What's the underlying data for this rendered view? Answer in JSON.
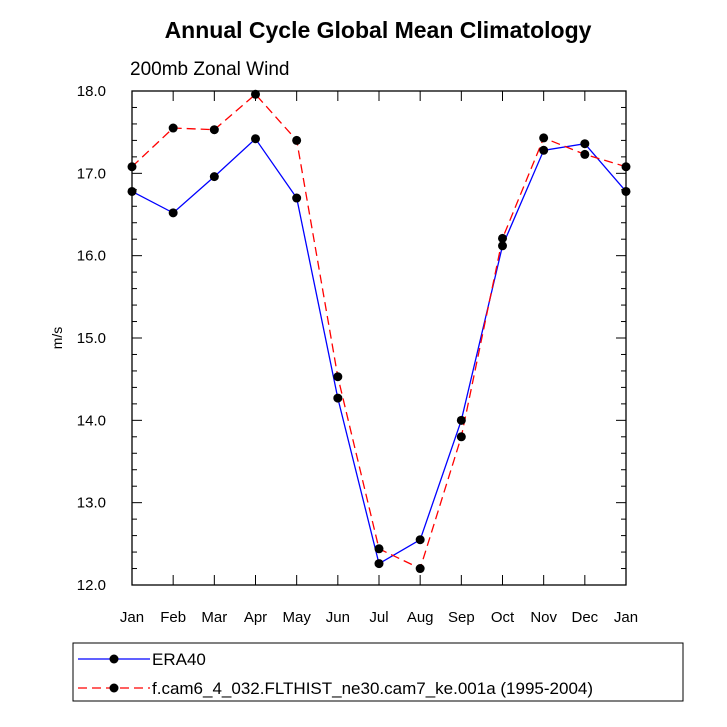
{
  "chart_data": {
    "type": "line",
    "title": "Annual Cycle Global Mean Climatology",
    "subtitle": "200mb Zonal Wind",
    "ylabel": "m/s",
    "xlabel": "",
    "categories": [
      "Jan",
      "Feb",
      "Mar",
      "Apr",
      "May",
      "Jun",
      "Jul",
      "Aug",
      "Sep",
      "Oct",
      "Nov",
      "Dec",
      "Jan"
    ],
    "ylim": [
      12.0,
      18.0
    ],
    "yticks": [
      "12.0",
      "13.0",
      "14.0",
      "15.0",
      "16.0",
      "17.0",
      "18.0"
    ],
    "series": [
      {
        "name": "ERA40",
        "color": "#0000ff",
        "dash": "solid",
        "values": [
          16.78,
          16.52,
          16.96,
          17.42,
          16.7,
          14.27,
          12.26,
          12.55,
          14.0,
          16.12,
          17.28,
          17.36,
          16.78
        ]
      },
      {
        "name": "f.cam6_4_032.FLTHIST_ne30.cam7_ke.001a (1995-2004)",
        "color": "#ff0000",
        "dash": "dashed",
        "values": [
          17.08,
          17.55,
          17.53,
          17.96,
          17.4,
          14.53,
          12.44,
          12.2,
          13.8,
          16.21,
          17.43,
          17.23,
          17.08
        ]
      }
    ],
    "grid": false,
    "legend_position": "bottom"
  }
}
